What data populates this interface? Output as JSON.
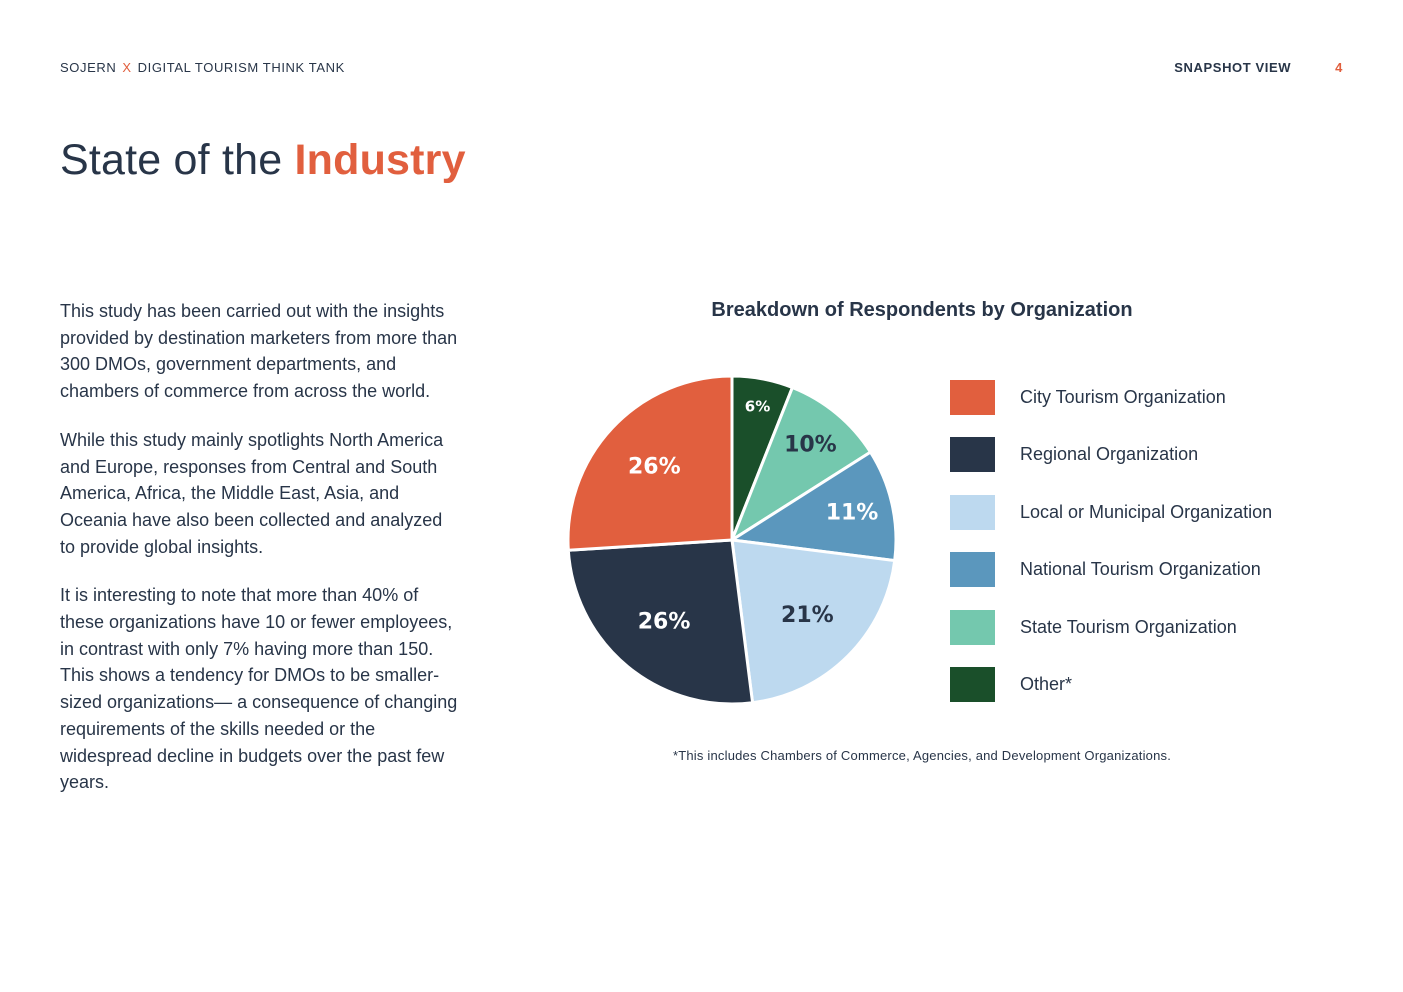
{
  "header": {
    "brand_left": "SOJERN",
    "separator": "X",
    "brand_right": "DIGITAL TOURISM THINK TANK",
    "section": "SNAPSHOT VIEW",
    "page_number": "4"
  },
  "title": {
    "prefix": "State of the",
    "highlight": "Industry"
  },
  "body": {
    "paragraphs": [
      "This study has been carried out with the insights provided by destination marketers from more than 300 DMOs, government departments, and chambers of commerce from across the world.",
      "While this study mainly spotlights North America and Europe, responses from Central and South America, Africa, the Middle East, Asia, and Oceania have also been collected and analyzed to provide global insights.",
      "It is interesting to note that more than 40% of these organizations have 10 or fewer employees, in contrast with only 7% having more than 150. This shows a tendency for DMOs to be smaller-sized organizations— a consequence of changing requirements of the skills needed or the widespread decline in budgets over the past few years."
    ]
  },
  "chart_data": {
    "type": "pie",
    "title": "Breakdown of Respondents by Organization",
    "footnote": "*This includes Chambers of Commerce, Agencies, and Development Organizations.",
    "slices": [
      {
        "name": "Other*",
        "value": 6,
        "label": "6%",
        "color": "#1a4f2a",
        "label_color": "#ffffff"
      },
      {
        "name": "State Tourism Organization",
        "value": 10,
        "label": "10%",
        "color": "#74c8ae",
        "label_color": "#283548"
      },
      {
        "name": "National Tourism Organization",
        "value": 11,
        "label": "11%",
        "color": "#5b97bd",
        "label_color": "#ffffff"
      },
      {
        "name": "Local or Municipal Organization",
        "value": 21,
        "label": "21%",
        "color": "#bdd9ef",
        "label_color": "#283548"
      },
      {
        "name": "Regional Organization",
        "value": 26,
        "label": "26%",
        "color": "#283548",
        "label_color": "#ffffff"
      },
      {
        "name": "City Tourism Organization",
        "value": 26,
        "label": "26%",
        "color": "#e15f3e",
        "label_color": "#ffffff"
      }
    ],
    "legend": [
      {
        "label": "City Tourism Organization",
        "color": "#e15f3e"
      },
      {
        "label": "Regional Organization",
        "color": "#283548"
      },
      {
        "label": "Local or Municipal Organization",
        "color": "#bdd9ef"
      },
      {
        "label": "National Tourism Organization",
        "color": "#5b97bd"
      },
      {
        "label": "State Tourism Organization",
        "color": "#74c8ae"
      },
      {
        "label": "Other*",
        "color": "#1a4f2a"
      }
    ]
  }
}
